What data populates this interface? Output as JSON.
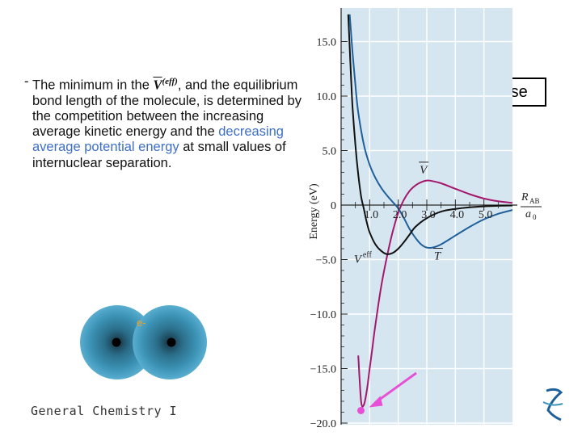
{
  "slide": {
    "bullet_dash": "-",
    "bullet_text_1": "The minimum in the ",
    "bullet_symbol": "V",
    "bullet_symbol_sup": "(eff)",
    "bullet_text_2": ", and the equilibrium bond length of the molecule, is determined by the competition between the increasing average kinetic energy and the ",
    "bullet_highlight": "decreasing average potential energy",
    "bullet_text_3": " at small values of internuclear separation.",
    "phase_label": "Final phase",
    "footer": "General Chemistry I",
    "electron_label": "e-"
  },
  "colors": {
    "highlight": "#3d6fc4",
    "plot_background": "#d6e6f0",
    "curve_veff": "#111111",
    "curve_kinetic": "#1f5f9a",
    "curve_potential": "#a3186c",
    "arrow": "#e64fd6",
    "marker": "#e64fd6",
    "atom": "#3d95b8"
  },
  "chart_data": {
    "type": "line",
    "title": "",
    "ylabel": "Energy (eV)",
    "xlabel_num": "R",
    "xlabel_num_sub": "AB",
    "xlabel_den": "a",
    "xlabel_den_sub": "0",
    "xlim": [
      0,
      6.0
    ],
    "ylim": [
      -20,
      18
    ],
    "grid": true,
    "xticks": [
      1.0,
      2.0,
      3.0,
      4.0,
      5.0
    ],
    "xtick_labels": [
      "1.0",
      "2.0",
      "3.0",
      "4.0",
      "5.0"
    ],
    "yticks": [
      15,
      10,
      5,
      0,
      -5,
      -10,
      -15,
      -20
    ],
    "ytick_labels": [
      "15.0",
      "10.0",
      "5.0",
      "0",
      "−5.0",
      "−10.0",
      "−15.0",
      "−20.0"
    ],
    "series": [
      {
        "name": "V",
        "x": [
          0.6,
          0.7,
          0.8,
          0.9,
          1.0,
          1.1,
          1.2,
          1.4,
          1.6,
          1.8,
          2.0,
          2.2,
          2.4,
          2.6,
          2.8,
          3.0,
          3.2,
          3.5,
          4.0,
          4.5,
          5.0,
          5.5,
          6.0
        ],
        "y": [
          -13.8,
          -18.0,
          -18.3,
          -17.0,
          -15.0,
          -13.0,
          -11.0,
          -7.5,
          -4.8,
          -2.5,
          -0.7,
          0.5,
          1.3,
          1.8,
          2.1,
          2.25,
          2.2,
          2.0,
          1.5,
          1.0,
          0.6,
          0.35,
          0.2
        ]
      },
      {
        "name": "T",
        "x": [
          0.3,
          0.4,
          0.5,
          0.6,
          0.8,
          1.0,
          1.2,
          1.4,
          1.6,
          1.8,
          2.0,
          2.2,
          2.4,
          2.6,
          2.8,
          3.0,
          3.2,
          3.5,
          4.0,
          4.5,
          5.0,
          5.5,
          6.0
        ],
        "y": [
          17.5,
          14.0,
          11.0,
          8.5,
          5.5,
          3.7,
          2.5,
          1.6,
          0.9,
          0.3,
          -0.3,
          -1.2,
          -2.2,
          -3.0,
          -3.6,
          -3.9,
          -3.9,
          -3.6,
          -2.8,
          -2.0,
          -1.3,
          -0.8,
          -0.45
        ]
      },
      {
        "name": "Veff",
        "x": [
          0.25,
          0.3,
          0.35,
          0.4,
          0.5,
          0.6,
          0.7,
          0.8,
          0.9,
          1.0,
          1.2,
          1.4,
          1.6,
          1.8,
          2.0,
          2.2,
          2.4,
          2.6,
          3.0,
          3.5,
          4.0,
          4.5,
          5.0,
          5.5,
          6.0
        ],
        "y": [
          17.5,
          14.5,
          11.5,
          9.0,
          5.5,
          2.8,
          0.8,
          -0.4,
          -1.6,
          -2.5,
          -3.6,
          -4.2,
          -4.5,
          -4.4,
          -4.0,
          -3.4,
          -2.7,
          -2.0,
          -1.2,
          -0.6,
          -0.35,
          -0.2,
          -0.12,
          -0.07,
          -0.04
        ]
      }
    ],
    "curve_labels": [
      {
        "text": "V",
        "bar": true,
        "x": 2.75,
        "y": 2.9,
        "series": "V"
      },
      {
        "text": "T",
        "bar": true,
        "x": 3.25,
        "y": -5.0,
        "series": "T"
      },
      {
        "text": "V",
        "sup": "eff",
        "x": 0.45,
        "y": -5.3,
        "series": "Veff"
      }
    ],
    "highlight_point": {
      "x": 0.75,
      "y": -18.7
    }
  }
}
